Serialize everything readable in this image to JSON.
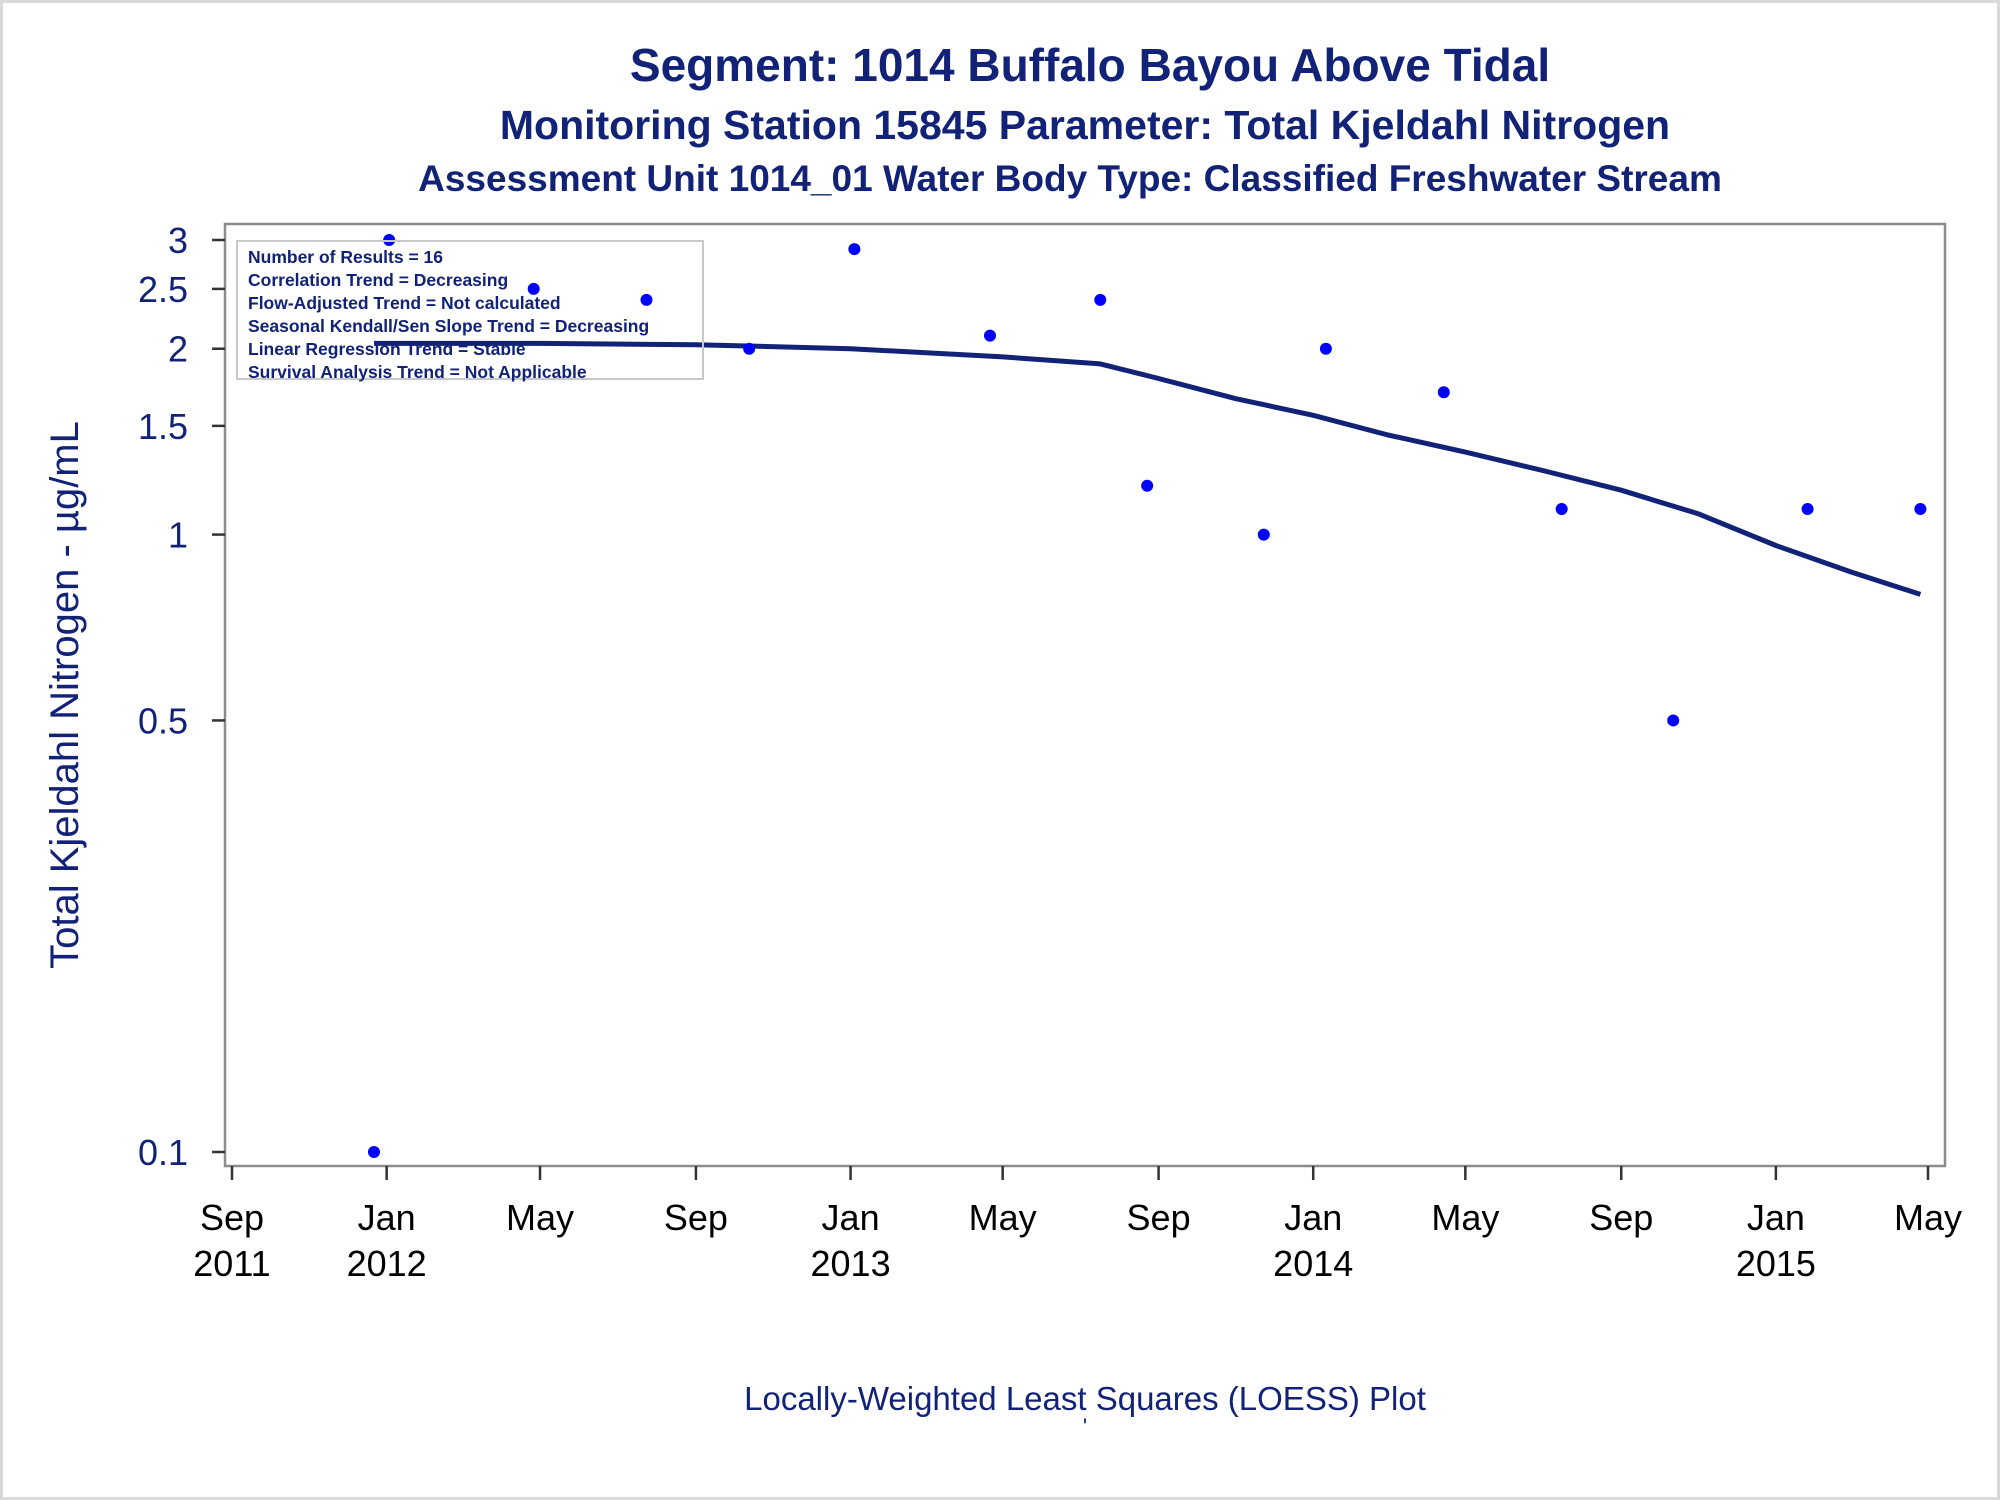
{
  "chart_data": {
    "type": "scatter",
    "title": "Segment: 1014  Buffalo Bayou Above Tidal",
    "subtitle": "Monitoring Station 15845 Parameter: Total Kjeldahl Nitrogen",
    "subtitle2": "Assessment Unit 1014_01   Water Body Type: Classified Freshwater Stream",
    "ylabel": "Total Kjeldahl Nitrogen -  µg/mL",
    "xlabel": "",
    "footnote": "Locally-Weighted Least Squares (LOESS) Plot",
    "footnote_mark": "'",
    "y_scale": "log",
    "ylim": [
      0.1,
      3
    ],
    "y_ticks": [
      {
        "value": 0.1,
        "label": "0.1"
      },
      {
        "value": 0.5,
        "label": "0.5"
      },
      {
        "value": 1,
        "label": "1"
      },
      {
        "value": 1.5,
        "label": "1.5"
      },
      {
        "value": 2,
        "label": "2"
      },
      {
        "value": 2.5,
        "label": "2.5"
      },
      {
        "value": 3,
        "label": "3"
      }
    ],
    "xlim": [
      "2011-09-01",
      "2015-05-01"
    ],
    "x_ticks": [
      {
        "date": "2011-09-01",
        "label": "Sep",
        "year": "2011"
      },
      {
        "date": "2012-01-01",
        "label": "Jan",
        "year": "2012"
      },
      {
        "date": "2012-05-01",
        "label": "May",
        "year": ""
      },
      {
        "date": "2012-09-01",
        "label": "Sep",
        "year": ""
      },
      {
        "date": "2013-01-01",
        "label": "Jan",
        "year": "2013"
      },
      {
        "date": "2013-05-01",
        "label": "May",
        "year": ""
      },
      {
        "date": "2013-09-01",
        "label": "Sep",
        "year": ""
      },
      {
        "date": "2014-01-01",
        "label": "Jan",
        "year": "2014"
      },
      {
        "date": "2014-05-01",
        "label": "May",
        "year": ""
      },
      {
        "date": "2014-09-01",
        "label": "Sep",
        "year": ""
      },
      {
        "date": "2015-01-01",
        "label": "Jan",
        "year": "2015"
      },
      {
        "date": "2015-05-01",
        "label": "May",
        "year": ""
      }
    ],
    "points": [
      {
        "x": "2011-12-22",
        "y": 0.1
      },
      {
        "x": "2012-01-03",
        "y": 3.0
      },
      {
        "x": "2012-04-26",
        "y": 2.5
      },
      {
        "x": "2012-07-24",
        "y": 2.4
      },
      {
        "x": "2012-10-13",
        "y": 2.0
      },
      {
        "x": "2013-01-04",
        "y": 2.9
      },
      {
        "x": "2013-04-21",
        "y": 2.1
      },
      {
        "x": "2013-07-17",
        "y": 2.4
      },
      {
        "x": "2013-08-23",
        "y": 1.2
      },
      {
        "x": "2013-11-23",
        "y": 1.0
      },
      {
        "x": "2014-01-11",
        "y": 2.0
      },
      {
        "x": "2014-04-14",
        "y": 1.7
      },
      {
        "x": "2014-07-16",
        "y": 1.1
      },
      {
        "x": "2014-10-12",
        "y": 0.5
      },
      {
        "x": "2015-01-26",
        "y": 1.1
      },
      {
        "x": "2015-04-25",
        "y": 1.1
      }
    ],
    "loess": [
      {
        "x": "2011-12-22",
        "y": 2.04
      },
      {
        "x": "2012-05-01",
        "y": 2.04
      },
      {
        "x": "2012-09-01",
        "y": 2.03
      },
      {
        "x": "2013-01-01",
        "y": 2.0
      },
      {
        "x": "2013-05-01",
        "y": 1.94
      },
      {
        "x": "2013-07-17",
        "y": 1.89
      },
      {
        "x": "2013-09-01",
        "y": 1.79
      },
      {
        "x": "2013-11-01",
        "y": 1.66
      },
      {
        "x": "2014-01-01",
        "y": 1.56
      },
      {
        "x": "2014-03-01",
        "y": 1.45
      },
      {
        "x": "2014-05-01",
        "y": 1.36
      },
      {
        "x": "2014-07-01",
        "y": 1.27
      },
      {
        "x": "2014-09-01",
        "y": 1.18
      },
      {
        "x": "2014-11-01",
        "y": 1.08
      },
      {
        "x": "2015-01-01",
        "y": 0.96
      },
      {
        "x": "2015-03-01",
        "y": 0.87
      },
      {
        "x": "2015-04-25",
        "y": 0.8
      }
    ],
    "grid": false,
    "colors": {
      "points": "#0000ff",
      "loess": "#112277",
      "text": "#112277",
      "axis": "#7f7f7f"
    },
    "stats": [
      "Number of Results = 16",
      "Correlation Trend = Decreasing",
      "Flow-Adjusted Trend = Not calculated",
      "Seasonal Kendall/Sen Slope Trend = Decreasing",
      "Linear Regression Trend = Stable",
      "Survival Analysis Trend = Not Applicable"
    ]
  }
}
